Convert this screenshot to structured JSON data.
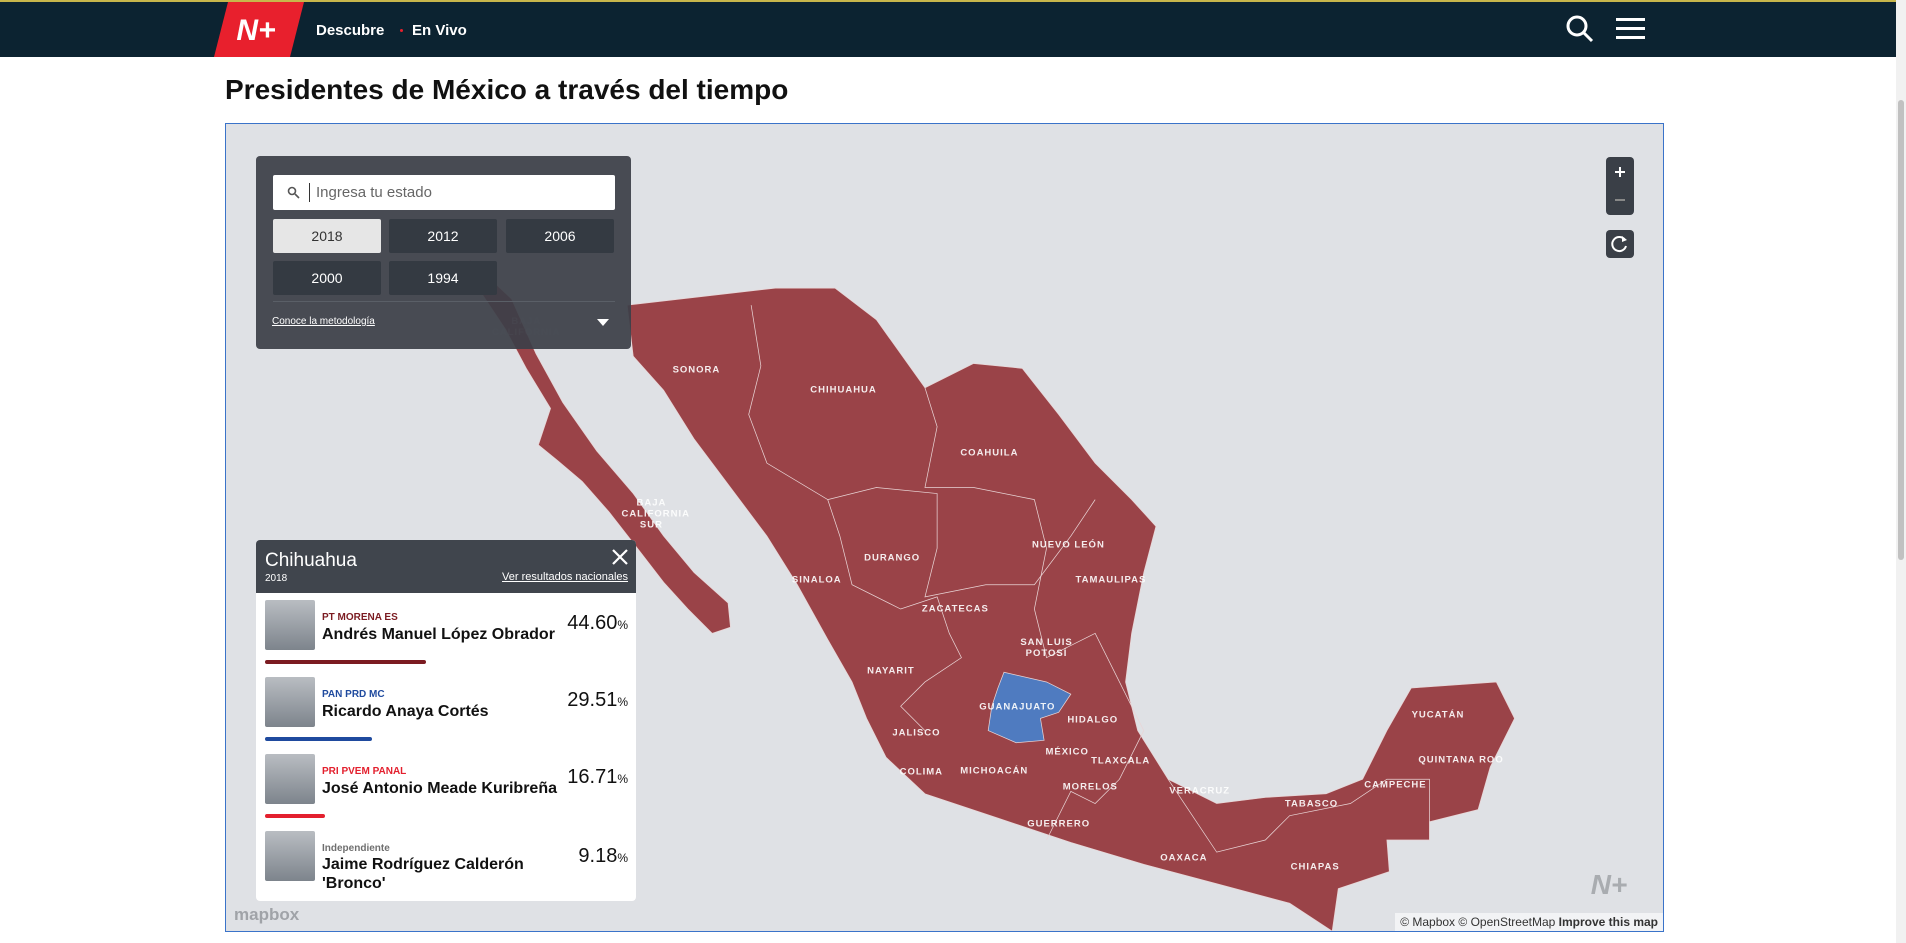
{
  "header": {
    "logo": "N+",
    "nav": [
      "Descubre",
      "En Vivo"
    ]
  },
  "title": "Presidentes de México a través del tiempo",
  "panel": {
    "search_placeholder": "Ingresa tu estado",
    "years": [
      "2018",
      "2012",
      "2006",
      "2000",
      "1994"
    ],
    "methodology": "Conoce la metodología"
  },
  "map": {
    "state_labels": [
      "BAJA CALIFORNIA",
      "SONORA",
      "CHIHUAHUA",
      "COAHUILA",
      "BAJA CALIFORNIA SUR",
      "NUEVO LEÓN",
      "DURANGO",
      "TAMAULIPAS",
      "SINALOA",
      "ZACATECAS",
      "SAN LUIS POTOSÍ",
      "NAYARIT",
      "GUANAJUATO",
      "HIDALGO",
      "JALISCO",
      "MÉXICO",
      "TLAXCALA",
      "COLIMA",
      "MICHOACÁN",
      "MORELOS",
      "VERACRUZ",
      "TABASCO",
      "CAMPECHE",
      "YUCATÁN",
      "QUINTANA ROO",
      "GUERRERO",
      "OAXACA",
      "CHIAPAS"
    ],
    "logo": "mapbox",
    "attribution": {
      "mapbox": "© Mapbox",
      "osm": "© OpenStreetMap",
      "improve": "Improve this map"
    }
  },
  "results": {
    "state": "Chihuahua",
    "year": "2018",
    "national_link": "Ver resultados nacionales",
    "candidates": [
      {
        "parties": "PT MORENA ES",
        "name": "Andrés Manuel López Obrador",
        "share": "44.60",
        "unit": "%",
        "color": "#7b1b21"
      },
      {
        "parties": "PAN PRD MC",
        "name": "Ricardo Anaya Cortés",
        "share": "29.51",
        "unit": "%",
        "color": "#1f4a9e"
      },
      {
        "parties": "PRI PVEM PANAL",
        "name": "José Antonio Meade Kuribreña",
        "share": "16.71",
        "unit": "%",
        "color": "#e3202e"
      },
      {
        "parties": "Independiente",
        "name": "Jaime Rodríguez Calderón 'Bronco'",
        "share": "9.18",
        "unit": "%",
        "color": "#6f6f6f"
      }
    ]
  }
}
